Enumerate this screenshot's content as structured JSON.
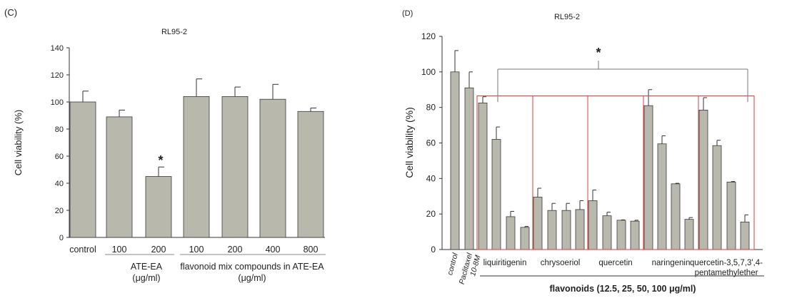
{
  "colors": {
    "bar_fill": "#b9b8ac",
    "bar_stroke": "#3a3a3a",
    "axis": "#333333",
    "group_box": "#e23a3a",
    "bracket": "#777777"
  },
  "chart_data": [
    {
      "panel_label": "(C)",
      "type": "bar",
      "title": "RL95-2",
      "ylabel": "Cell viability (%)",
      "xlabel": "",
      "ylim": [
        0,
        140
      ],
      "yticks": [
        0,
        20,
        40,
        60,
        80,
        100,
        120,
        140
      ],
      "categories": [
        "control",
        "100",
        "200",
        "100",
        "200",
        "400",
        "800"
      ],
      "values": [
        100,
        89,
        45,
        104,
        104,
        102,
        93
      ],
      "errors": [
        8,
        5,
        7,
        13,
        7,
        11,
        2.5
      ],
      "significance": [
        {
          "index": 2,
          "marker": "*"
        }
      ],
      "groups": [
        {
          "label_lines": [
            "ATE-EA",
            "(μg/ml)"
          ],
          "from": 1,
          "to": 2
        },
        {
          "label_lines": [
            "flavonoid mix compounds in ATE-EA",
            "(μg/ml)"
          ],
          "from": 3,
          "to": 6
        }
      ]
    },
    {
      "panel_label": "(D)",
      "type": "bar",
      "title": "RL95-2",
      "ylabel": "Cell viability (%)",
      "xlabel": "flavonoids (12.5, 25, 50, 100 μg/ml)",
      "ylim": [
        0,
        120
      ],
      "yticks": [
        0,
        20,
        40,
        60,
        80,
        100,
        120
      ],
      "leading_categories": [
        "control",
        "Paclitaxel 10-8M"
      ],
      "values": [
        100,
        91,
        82.5,
        62,
        18.5,
        12.5,
        29.5,
        22,
        22,
        22.5,
        27.5,
        19,
        16.5,
        16,
        81,
        59.5,
        37,
        17,
        78.5,
        58.5,
        38,
        15.5
      ],
      "errors": [
        12,
        9,
        3.5,
        7,
        3,
        0.5,
        5,
        4,
        4,
        5,
        6,
        2,
        0.2,
        0.5,
        9,
        4.5,
        0.3,
        1,
        7,
        3,
        0.3,
        4
      ],
      "compound_groups": [
        {
          "label": "liquiritigenin",
          "from": 2,
          "to": 5
        },
        {
          "label": "chrysoeriol",
          "from": 6,
          "to": 9
        },
        {
          "label": "quercetin",
          "from": 10,
          "to": 13
        },
        {
          "label": "naringenin",
          "from": 14,
          "to": 17
        },
        {
          "label": "quercetin-3,5,7,3',4-\npentamethylether",
          "from": 18,
          "to": 21
        }
      ],
      "significance_bracket": {
        "marker": "*",
        "from": 2,
        "to": 21
      }
    }
  ]
}
